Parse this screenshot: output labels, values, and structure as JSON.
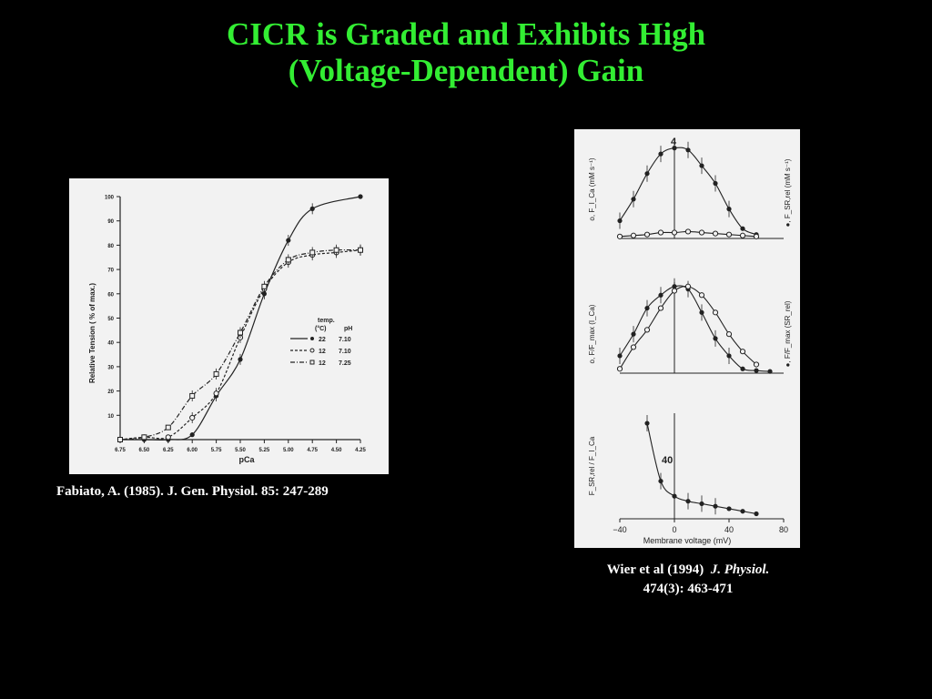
{
  "slide": {
    "title_line1": "CICR is Graded and Exhibits High",
    "title_line2": "(Voltage-Dependent) Gain"
  },
  "captions": {
    "left": "Fabiato, A. (1985). J. Gen. Physiol. 85: 247-289",
    "right_line1_prefix": "Wier et al (1994)",
    "right_line1_journal": "J. Physiol.",
    "right_line2": "474(3): 463-471"
  },
  "colors": {
    "title": "#33ee33",
    "background": "#000000",
    "figure_bg": "#f2f2f2",
    "ink": "#222222"
  },
  "chart_data": [
    {
      "type": "line",
      "xlabel": "pCa",
      "ylabel": "Relative Tension ( % of max.)",
      "x_ticks": [
        "6.75",
        "6.50",
        "6.25",
        "6.00",
        "5.75",
        "5.50",
        "5.25",
        "5.00",
        "4.75",
        "4.50",
        "4.25"
      ],
      "y_ticks": [
        "10",
        "20",
        "30",
        "40",
        "50",
        "60",
        "70",
        "80",
        "90",
        "100"
      ],
      "xlim": [
        6.75,
        4.25
      ],
      "ylim": [
        0,
        100
      ],
      "legend": {
        "header_temp": "temp.",
        "header_unit": "(°C)",
        "header_ph": "pH",
        "entries": [
          {
            "temp": "22",
            "ph": "7.10",
            "marker": "filled-circle",
            "line": "solid"
          },
          {
            "temp": "12",
            "ph": "7.10",
            "marker": "open-circle",
            "line": "dashed"
          },
          {
            "temp": "12",
            "ph": "7.25",
            "marker": "open-square",
            "line": "dash-dot"
          }
        ]
      },
      "series": [
        {
          "marker": "filled-circle",
          "line": "solid",
          "x": [
            6.75,
            6.5,
            6.25,
            6.0,
            5.75,
            5.5,
            5.25,
            5.0,
            4.75,
            4.25
          ],
          "y": [
            0,
            0,
            0,
            2,
            18,
            33,
            60,
            82,
            95,
            100
          ]
        },
        {
          "marker": "open-circle",
          "line": "dashed",
          "x": [
            6.75,
            6.5,
            6.25,
            6.0,
            5.75,
            5.5,
            5.25,
            5.0,
            4.75,
            4.5,
            4.25
          ],
          "y": [
            0,
            1,
            1,
            9,
            19,
            42,
            62,
            73,
            76,
            77,
            78
          ]
        },
        {
          "marker": "open-square",
          "line": "dash-dot",
          "x": [
            6.75,
            6.5,
            6.25,
            6.0,
            5.75,
            5.5,
            5.25,
            5.0,
            4.75,
            4.5,
            4.25
          ],
          "y": [
            0,
            1,
            5,
            18,
            27,
            44,
            63,
            74,
            77,
            78,
            78
          ]
        }
      ]
    },
    {
      "type": "line",
      "panel": "A",
      "ylabel_left": "o, F_I_Ca (mM s⁻¹)",
      "ylabel_right": "●, F_SR,rel (mM s⁻¹)",
      "annotation": "4",
      "series": [
        {
          "marker": "filled-circle",
          "x": [
            -40,
            -30,
            -20,
            -10,
            0,
            10,
            20,
            30,
            40,
            50,
            60
          ],
          "y": [
            0.9,
            2.0,
            3.3,
            4.3,
            4.6,
            4.5,
            3.7,
            2.8,
            1.5,
            0.5,
            0.2
          ]
        },
        {
          "marker": "open-circle",
          "x": [
            -40,
            -30,
            -20,
            -10,
            0,
            10,
            20,
            30,
            40,
            50,
            60
          ],
          "y": [
            0.1,
            0.15,
            0.2,
            0.3,
            0.3,
            0.35,
            0.3,
            0.25,
            0.2,
            0.15,
            0.1
          ]
        }
      ]
    },
    {
      "type": "line",
      "panel": "B",
      "ylabel_left": "o, F/F_max (I_Ca)",
      "ylabel_right": "●, F/F_max (SR_rel)",
      "series": [
        {
          "marker": "filled-circle",
          "x": [
            -40,
            -30,
            -20,
            -10,
            0,
            10,
            20,
            30,
            40,
            50,
            60,
            70
          ],
          "y": [
            0.2,
            0.45,
            0.75,
            0.9,
            1.0,
            0.97,
            0.7,
            0.4,
            0.2,
            0.05,
            0.03,
            0.02
          ]
        },
        {
          "marker": "open-circle",
          "x": [
            -40,
            -30,
            -20,
            -10,
            0,
            10,
            20,
            30,
            40,
            50,
            60
          ],
          "y": [
            0.05,
            0.3,
            0.5,
            0.75,
            0.95,
            1.0,
            0.9,
            0.7,
            0.45,
            0.25,
            0.1
          ]
        }
      ]
    },
    {
      "type": "line",
      "panel": "C",
      "ylabel": "F_SR,rel / F_I_Ca",
      "xlabel": "Membrane voltage (mV)",
      "x_ticks": [
        "−40",
        "0",
        "40",
        "80"
      ],
      "xlim": [
        -40,
        80
      ],
      "annotation": "40",
      "series": [
        {
          "marker": "filled-circle",
          "x": [
            -20,
            -10,
            0,
            10,
            20,
            30,
            40,
            50,
            60
          ],
          "y": [
            38,
            15,
            9,
            7,
            6,
            5,
            4,
            3,
            2
          ]
        }
      ]
    }
  ]
}
